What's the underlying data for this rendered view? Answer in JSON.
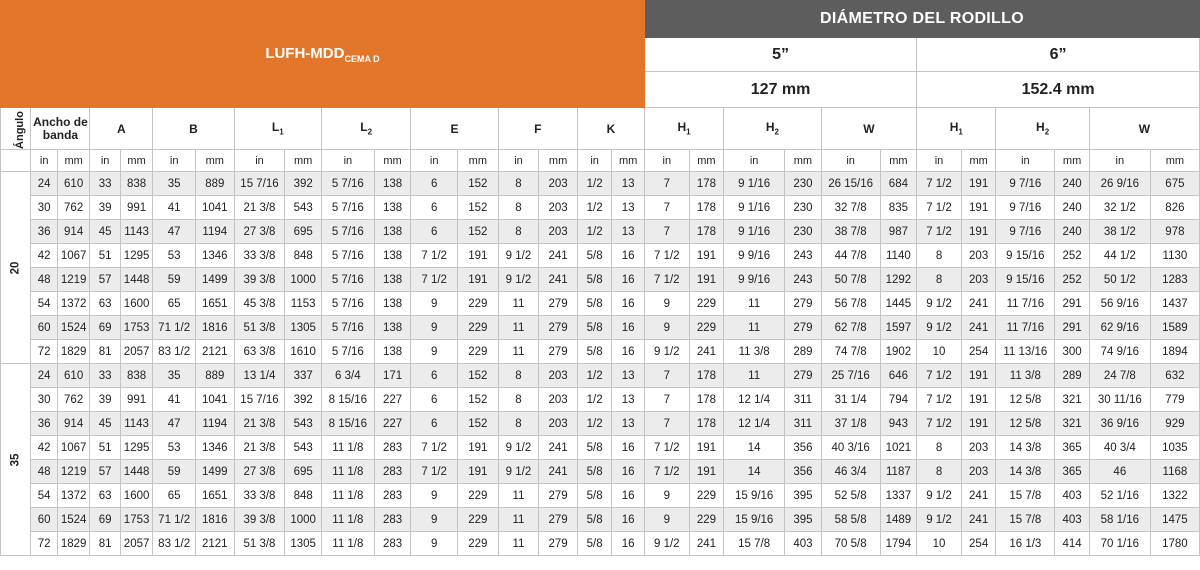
{
  "header": {
    "brand": "LUFH-MDD",
    "brand_sub": "CEMA D",
    "diameter_title": "DIÁMETRO DEL RODILLO",
    "d5_in": "5”",
    "d5_mm": "127 mm",
    "d6_in": "6”",
    "d6_mm": "152.4 mm"
  },
  "columns": {
    "angle": "Ángulo",
    "width": "Ancho de banda",
    "A": "A",
    "B": "B",
    "L": "L",
    "E": "E",
    "F": "F",
    "K": "K",
    "H": "H",
    "W": "W",
    "sub1": "1",
    "sub2": "2"
  },
  "units": {
    "in": "in",
    "mm": "mm"
  },
  "groups": [
    {
      "angle": "20",
      "rows": [
        [
          "24",
          "610",
          "33",
          "838",
          "35",
          "889",
          "15 7/16",
          "392",
          "5 7/16",
          "138",
          "6",
          "152",
          "8",
          "203",
          "1/2",
          "13",
          "7",
          "178",
          "9 1/16",
          "230",
          "26 15/16",
          "684",
          "7 1/2",
          "191",
          "9 7/16",
          "240",
          "26 9/16",
          "675"
        ],
        [
          "30",
          "762",
          "39",
          "991",
          "41",
          "1041",
          "21 3/8",
          "543",
          "5 7/16",
          "138",
          "6",
          "152",
          "8",
          "203",
          "1/2",
          "13",
          "7",
          "178",
          "9 1/16",
          "230",
          "32 7/8",
          "835",
          "7 1/2",
          "191",
          "9 7/16",
          "240",
          "32 1/2",
          "826"
        ],
        [
          "36",
          "914",
          "45",
          "1143",
          "47",
          "1194",
          "27 3/8",
          "695",
          "5 7/16",
          "138",
          "6",
          "152",
          "8",
          "203",
          "1/2",
          "13",
          "7",
          "178",
          "9 1/16",
          "230",
          "38 7/8",
          "987",
          "7 1/2",
          "191",
          "9 7/16",
          "240",
          "38 1/2",
          "978"
        ],
        [
          "42",
          "1067",
          "51",
          "1295",
          "53",
          "1346",
          "33 3/8",
          "848",
          "5 7/16",
          "138",
          "7 1/2",
          "191",
          "9 1/2",
          "241",
          "5/8",
          "16",
          "7 1/2",
          "191",
          "9 9/16",
          "243",
          "44 7/8",
          "1140",
          "8",
          "203",
          "9 15/16",
          "252",
          "44 1/2",
          "1130"
        ],
        [
          "48",
          "1219",
          "57",
          "1448",
          "59",
          "1499",
          "39 3/8",
          "1000",
          "5 7/16",
          "138",
          "7 1/2",
          "191",
          "9 1/2",
          "241",
          "5/8",
          "16",
          "7 1/2",
          "191",
          "9 9/16",
          "243",
          "50 7/8",
          "1292",
          "8",
          "203",
          "9 15/16",
          "252",
          "50 1/2",
          "1283"
        ],
        [
          "54",
          "1372",
          "63",
          "1600",
          "65",
          "1651",
          "45 3/8",
          "1153",
          "5 7/16",
          "138",
          "9",
          "229",
          "11",
          "279",
          "5/8",
          "16",
          "9",
          "229",
          "11",
          "279",
          "56 7/8",
          "1445",
          "9 1/2",
          "241",
          "11 7/16",
          "291",
          "56 9/16",
          "1437"
        ],
        [
          "60",
          "1524",
          "69",
          "1753",
          "71 1/2",
          "1816",
          "51 3/8",
          "1305",
          "5 7/16",
          "138",
          "9",
          "229",
          "11",
          "279",
          "5/8",
          "16",
          "9",
          "229",
          "11",
          "279",
          "62 7/8",
          "1597",
          "9 1/2",
          "241",
          "11 7/16",
          "291",
          "62 9/16",
          "1589"
        ],
        [
          "72",
          "1829",
          "81",
          "2057",
          "83 1/2",
          "2121",
          "63 3/8",
          "1610",
          "5 7/16",
          "138",
          "9",
          "229",
          "11",
          "279",
          "5/8",
          "16",
          "9 1/2",
          "241",
          "11 3/8",
          "289",
          "74 7/8",
          "1902",
          "10",
          "254",
          "11 13/16",
          "300",
          "74 9/16",
          "1894"
        ]
      ]
    },
    {
      "angle": "35",
      "rows": [
        [
          "24",
          "610",
          "33",
          "838",
          "35",
          "889",
          "13 1/4",
          "337",
          "6 3/4",
          "171",
          "6",
          "152",
          "8",
          "203",
          "1/2",
          "13",
          "7",
          "178",
          "11",
          "279",
          "25 7/16",
          "646",
          "7 1/2",
          "191",
          "11 3/8",
          "289",
          "24 7/8",
          "632"
        ],
        [
          "30",
          "762",
          "39",
          "991",
          "41",
          "1041",
          "15 7/16",
          "392",
          "8 15/16",
          "227",
          "6",
          "152",
          "8",
          "203",
          "1/2",
          "13",
          "7",
          "178",
          "12 1/4",
          "311",
          "31 1/4",
          "794",
          "7 1/2",
          "191",
          "12 5/8",
          "321",
          "30 11/16",
          "779"
        ],
        [
          "36",
          "914",
          "45",
          "1143",
          "47",
          "1194",
          "21 3/8",
          "543",
          "8 15/16",
          "227",
          "6",
          "152",
          "8",
          "203",
          "1/2",
          "13",
          "7",
          "178",
          "12 1/4",
          "311",
          "37 1/8",
          "943",
          "7 1/2",
          "191",
          "12 5/8",
          "321",
          "36 9/16",
          "929"
        ],
        [
          "42",
          "1067",
          "51",
          "1295",
          "53",
          "1346",
          "21 3/8",
          "543",
          "11 1/8",
          "283",
          "7 1/2",
          "191",
          "9 1/2",
          "241",
          "5/8",
          "16",
          "7 1/2",
          "191",
          "14",
          "356",
          "40 3/16",
          "1021",
          "8",
          "203",
          "14 3/8",
          "365",
          "40 3/4",
          "1035"
        ],
        [
          "48",
          "1219",
          "57",
          "1448",
          "59",
          "1499",
          "27 3/8",
          "695",
          "11 1/8",
          "283",
          "7 1/2",
          "191",
          "9 1/2",
          "241",
          "5/8",
          "16",
          "7 1/2",
          "191",
          "14",
          "356",
          "46 3/4",
          "1187",
          "8",
          "203",
          "14 3/8",
          "365",
          "46",
          "1168"
        ],
        [
          "54",
          "1372",
          "63",
          "1600",
          "65",
          "1651",
          "33 3/8",
          "848",
          "11 1/8",
          "283",
          "9",
          "229",
          "11",
          "279",
          "5/8",
          "16",
          "9",
          "229",
          "15 9/16",
          "395",
          "52 5/8",
          "1337",
          "9 1/2",
          "241",
          "15 7/8",
          "403",
          "52 1/16",
          "1322"
        ],
        [
          "60",
          "1524",
          "69",
          "1753",
          "71 1/2",
          "1816",
          "39 3/8",
          "1000",
          "11 1/8",
          "283",
          "9",
          "229",
          "11",
          "279",
          "5/8",
          "16",
          "9",
          "229",
          "15 9/16",
          "395",
          "58 5/8",
          "1489",
          "9 1/2",
          "241",
          "15 7/8",
          "403",
          "58 1/16",
          "1475"
        ],
        [
          "72",
          "1829",
          "81",
          "2057",
          "83 1/2",
          "2121",
          "51 3/8",
          "1305",
          "11 1/8",
          "283",
          "9",
          "229",
          "11",
          "279",
          "5/8",
          "16",
          "9 1/2",
          "241",
          "15 7/8",
          "403",
          "70 5/8",
          "1794",
          "10",
          "254",
          "16 1/3",
          "414",
          "70 1/16",
          "1780"
        ]
      ]
    }
  ]
}
